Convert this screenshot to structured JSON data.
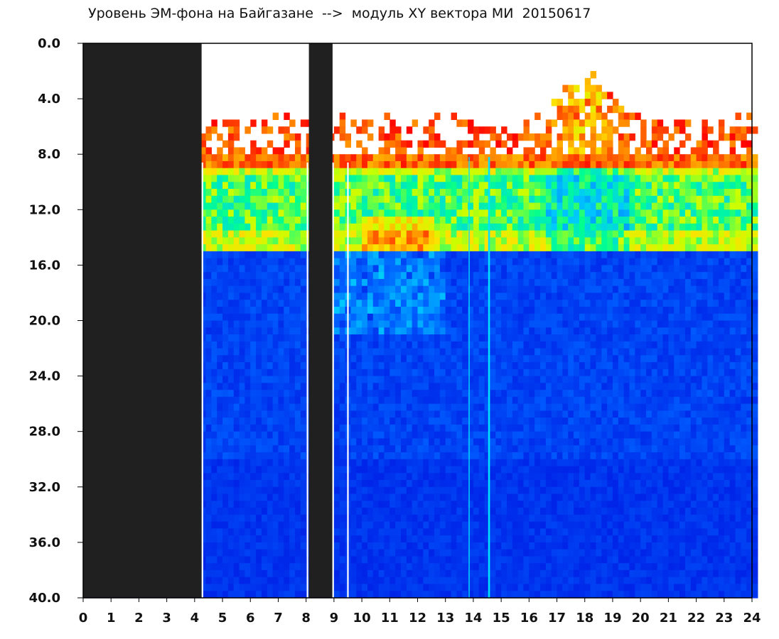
{
  "chart_data": {
    "type": "heatmap",
    "title": "Уровень ЭМ-фона на Байгазане  -->  модуль XY вектора МИ  20150617",
    "xlabel": "",
    "ylabel": "",
    "xlim": [
      0,
      24
    ],
    "ylim": [
      0,
      40
    ],
    "y_inverted": true,
    "x_ticks": [
      "0",
      "1",
      "2",
      "3",
      "4",
      "5",
      "6",
      "7",
      "8",
      "9",
      "10",
      "11",
      "12",
      "13",
      "14",
      "15",
      "16",
      "17",
      "18",
      "19",
      "20",
      "21",
      "22",
      "23",
      "24"
    ],
    "y_ticks": [
      "0.0",
      "4.0",
      "8.0",
      "12.0",
      "16.0",
      "20.0",
      "24.0",
      "28.0",
      "32.0",
      "36.0",
      "40.0"
    ],
    "grid": false,
    "colormap": [
      "#0010e0",
      "#0060ff",
      "#00c8ff",
      "#00ff90",
      "#c8ff00",
      "#ffe000",
      "#ff8000",
      "#ff0000"
    ],
    "no_data_color": "#202020",
    "no_data_intervals": [
      [
        0,
        4.25
      ],
      [
        8.1,
        8.95
      ]
    ],
    "blank_lines_hours": [
      4.28,
      8.05,
      8.97,
      9.5
    ],
    "spike_lines_hours": [
      13.85,
      14.55,
      14.58
    ],
    "level_bands": [
      {
        "y_range": [
          0,
          8
        ],
        "description_value": "red sparse"
      },
      {
        "y_range": [
          8,
          9
        ],
        "description_value": "red-yellow"
      },
      {
        "y_range": [
          9,
          15
        ],
        "description_value": "green-cyan"
      },
      {
        "y_range": [
          15,
          40
        ],
        "description_value": "blue"
      }
    ]
  }
}
